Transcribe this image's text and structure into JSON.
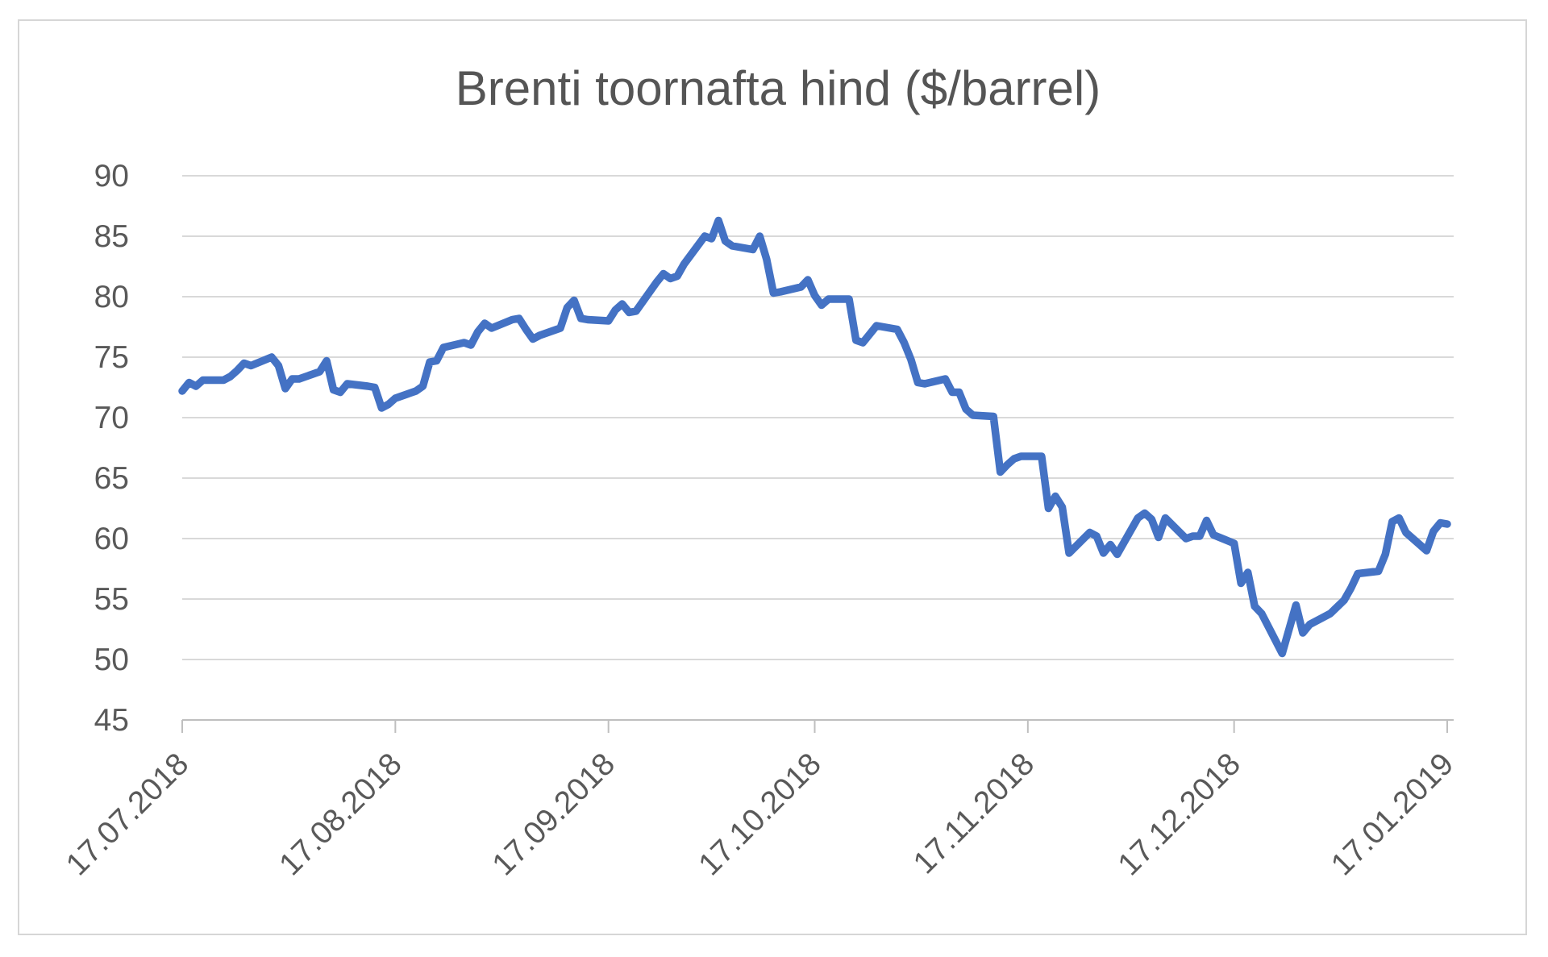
{
  "window": {
    "background_color": "#ffffff",
    "frame_border_color": "#d6d6d6"
  },
  "chart_data": {
    "type": "line",
    "title": "Brenti toornafta hind ($/barrel)",
    "xlabel": "",
    "ylabel": "",
    "legend": "none",
    "grid": "horizontal",
    "ylim": [
      45,
      90
    ],
    "ytick_step": 5,
    "yticks": [
      45,
      50,
      55,
      60,
      65,
      70,
      75,
      80,
      85,
      90
    ],
    "x_start_date": "2018-07-17",
    "x_end_date": "2019-01-17",
    "xticks": [
      {
        "label": "17.07.2018",
        "date": "2018-07-17"
      },
      {
        "label": "17.08.2018",
        "date": "2018-08-17"
      },
      {
        "label": "17.09.2018",
        "date": "2018-09-17"
      },
      {
        "label": "17.10.2018",
        "date": "2018-10-17"
      },
      {
        "label": "17.11.2018",
        "date": "2018-11-17"
      },
      {
        "label": "17.12.2018",
        "date": "2018-12-17"
      },
      {
        "label": "17.01.2019",
        "date": "2019-01-17"
      }
    ],
    "colors": {
      "line": "#4472C4",
      "gridline": "#d9d9d9",
      "axis": "#bfbfbf",
      "text": "#595959",
      "title_text": "#555555"
    },
    "series": [
      {
        "name": "Brenti toornafta hind ($/barrel)",
        "points": [
          [
            "2018-07-17",
            72.2
          ],
          [
            "2018-07-18",
            72.9
          ],
          [
            "2018-07-19",
            72.6
          ],
          [
            "2018-07-20",
            73.1
          ],
          [
            "2018-07-23",
            73.1
          ],
          [
            "2018-07-24",
            73.4
          ],
          [
            "2018-07-25",
            73.9
          ],
          [
            "2018-07-26",
            74.5
          ],
          [
            "2018-07-27",
            74.3
          ],
          [
            "2018-07-30",
            75.0
          ],
          [
            "2018-07-31",
            74.3
          ],
          [
            "2018-08-01",
            72.4
          ],
          [
            "2018-08-02",
            73.2
          ],
          [
            "2018-08-03",
            73.2
          ],
          [
            "2018-08-06",
            73.8
          ],
          [
            "2018-08-07",
            74.7
          ],
          [
            "2018-08-08",
            72.3
          ],
          [
            "2018-08-09",
            72.1
          ],
          [
            "2018-08-10",
            72.8
          ],
          [
            "2018-08-13",
            72.6
          ],
          [
            "2018-08-14",
            72.5
          ],
          [
            "2018-08-15",
            70.8
          ],
          [
            "2018-08-16",
            71.1
          ],
          [
            "2018-08-17",
            71.6
          ],
          [
            "2018-08-20",
            72.2
          ],
          [
            "2018-08-21",
            72.6
          ],
          [
            "2018-08-22",
            74.6
          ],
          [
            "2018-08-23",
            74.7
          ],
          [
            "2018-08-24",
            75.8
          ],
          [
            "2018-08-27",
            76.2
          ],
          [
            "2018-08-28",
            76.0
          ],
          [
            "2018-08-29",
            77.1
          ],
          [
            "2018-08-30",
            77.8
          ],
          [
            "2018-08-31",
            77.4
          ],
          [
            "2018-09-03",
            78.1
          ],
          [
            "2018-09-04",
            78.2
          ],
          [
            "2018-09-05",
            77.3
          ],
          [
            "2018-09-06",
            76.5
          ],
          [
            "2018-09-07",
            76.8
          ],
          [
            "2018-09-10",
            77.4
          ],
          [
            "2018-09-11",
            79.1
          ],
          [
            "2018-09-12",
            79.7
          ],
          [
            "2018-09-13",
            78.2
          ],
          [
            "2018-09-14",
            78.1
          ],
          [
            "2018-09-17",
            78.0
          ],
          [
            "2018-09-18",
            78.9
          ],
          [
            "2018-09-19",
            79.4
          ],
          [
            "2018-09-20",
            78.7
          ],
          [
            "2018-09-21",
            78.8
          ],
          [
            "2018-09-24",
            81.2
          ],
          [
            "2018-09-25",
            81.9
          ],
          [
            "2018-09-26",
            81.5
          ],
          [
            "2018-09-27",
            81.7
          ],
          [
            "2018-09-28",
            82.7
          ],
          [
            "2018-10-01",
            85.0
          ],
          [
            "2018-10-02",
            84.8
          ],
          [
            "2018-10-03",
            86.3
          ],
          [
            "2018-10-04",
            84.6
          ],
          [
            "2018-10-05",
            84.2
          ],
          [
            "2018-10-08",
            83.9
          ],
          [
            "2018-10-09",
            85.0
          ],
          [
            "2018-10-10",
            83.1
          ],
          [
            "2018-10-11",
            80.3
          ],
          [
            "2018-10-12",
            80.4
          ],
          [
            "2018-10-15",
            80.8
          ],
          [
            "2018-10-16",
            81.4
          ],
          [
            "2018-10-17",
            80.1
          ],
          [
            "2018-10-18",
            79.3
          ],
          [
            "2018-10-19",
            79.8
          ],
          [
            "2018-10-22",
            79.8
          ],
          [
            "2018-10-23",
            76.4
          ],
          [
            "2018-10-24",
            76.2
          ],
          [
            "2018-10-25",
            76.9
          ],
          [
            "2018-10-26",
            77.6
          ],
          [
            "2018-10-29",
            77.3
          ],
          [
            "2018-10-30",
            76.2
          ],
          [
            "2018-10-31",
            74.8
          ],
          [
            "2018-11-01",
            72.9
          ],
          [
            "2018-11-02",
            72.8
          ],
          [
            "2018-11-05",
            73.2
          ],
          [
            "2018-11-06",
            72.1
          ],
          [
            "2018-11-07",
            72.1
          ],
          [
            "2018-11-08",
            70.7
          ],
          [
            "2018-11-09",
            70.2
          ],
          [
            "2018-11-12",
            70.1
          ],
          [
            "2018-11-13",
            65.5
          ],
          [
            "2018-11-14",
            66.1
          ],
          [
            "2018-11-15",
            66.6
          ],
          [
            "2018-11-16",
            66.8
          ],
          [
            "2018-11-19",
            66.8
          ],
          [
            "2018-11-20",
            62.5
          ],
          [
            "2018-11-21",
            63.5
          ],
          [
            "2018-11-22",
            62.6
          ],
          [
            "2018-11-23",
            58.8
          ],
          [
            "2018-11-26",
            60.5
          ],
          [
            "2018-11-27",
            60.2
          ],
          [
            "2018-11-28",
            58.8
          ],
          [
            "2018-11-29",
            59.5
          ],
          [
            "2018-11-30",
            58.7
          ],
          [
            "2018-12-03",
            61.7
          ],
          [
            "2018-12-04",
            62.1
          ],
          [
            "2018-12-05",
            61.6
          ],
          [
            "2018-12-06",
            60.1
          ],
          [
            "2018-12-07",
            61.7
          ],
          [
            "2018-12-10",
            60.0
          ],
          [
            "2018-12-11",
            60.2
          ],
          [
            "2018-12-12",
            60.2
          ],
          [
            "2018-12-13",
            61.5
          ],
          [
            "2018-12-14",
            60.3
          ],
          [
            "2018-12-17",
            59.6
          ],
          [
            "2018-12-18",
            56.3
          ],
          [
            "2018-12-19",
            57.2
          ],
          [
            "2018-12-20",
            54.4
          ],
          [
            "2018-12-21",
            53.8
          ],
          [
            "2018-12-24",
            50.5
          ],
          [
            "2018-12-26",
            54.5
          ],
          [
            "2018-12-27",
            52.2
          ],
          [
            "2018-12-28",
            52.9
          ],
          [
            "2018-12-31",
            53.8
          ],
          [
            "2019-01-02",
            54.9
          ],
          [
            "2019-01-03",
            55.9
          ],
          [
            "2019-01-04",
            57.1
          ],
          [
            "2019-01-07",
            57.3
          ],
          [
            "2019-01-08",
            58.7
          ],
          [
            "2019-01-09",
            61.4
          ],
          [
            "2019-01-10",
            61.7
          ],
          [
            "2019-01-11",
            60.5
          ],
          [
            "2019-01-14",
            59.0
          ],
          [
            "2019-01-15",
            60.6
          ],
          [
            "2019-01-16",
            61.3
          ],
          [
            "2019-01-17",
            61.2
          ]
        ]
      }
    ]
  }
}
